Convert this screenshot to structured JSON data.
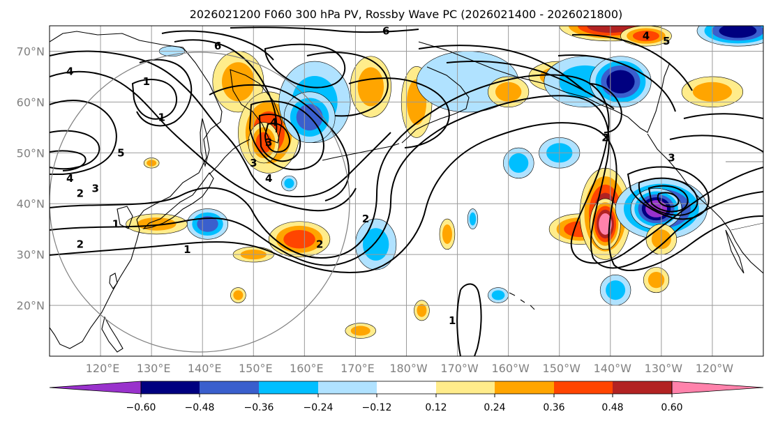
{
  "chart_data": {
    "type": "contour_map",
    "title": "2026021200 F060 300 hPa PV, Rossby Wave PC (2026021400 - 2026021800)",
    "lat_range": [
      10,
      75
    ],
    "lon_range": [
      110,
      250
    ],
    "lat_ticks": [
      {
        "value": 20,
        "label": "20°N"
      },
      {
        "value": 30,
        "label": "30°N"
      },
      {
        "value": 40,
        "label": "40°N"
      },
      {
        "value": 50,
        "label": "50°N"
      },
      {
        "value": 60,
        "label": "60°N"
      },
      {
        "value": 70,
        "label": "70°N"
      }
    ],
    "lon_ticks": [
      {
        "value": 120,
        "label": "120°E"
      },
      {
        "value": 130,
        "label": "130°E"
      },
      {
        "value": 140,
        "label": "140°E"
      },
      {
        "value": 150,
        "label": "150°E"
      },
      {
        "value": 160,
        "label": "160°E"
      },
      {
        "value": 170,
        "label": "170°E"
      },
      {
        "value": 180,
        "label": "180°W"
      },
      {
        "value": 190,
        "label": "170°W"
      },
      {
        "value": 200,
        "label": "160°W"
      },
      {
        "value": 210,
        "label": "150°W"
      },
      {
        "value": 220,
        "label": "140°W"
      },
      {
        "value": 230,
        "label": "130°W"
      },
      {
        "value": 240,
        "label": "120°W"
      }
    ],
    "colorbar": {
      "colors": [
        "#9932CC",
        "#000080",
        "#3A5FCD",
        "#00BFFF",
        "#B0E2FF",
        "#FFFFFF",
        "#FFEC8B",
        "#FFA500",
        "#FF4500",
        "#B22222",
        "#FF82AB"
      ],
      "tick_labels": [
        "−0.60",
        "−0.48",
        "−0.36",
        "−0.24",
        "−0.12",
        "0.12",
        "0.24",
        "0.36",
        "0.48",
        "0.60"
      ],
      "extend": "both"
    },
    "pv_contour_labels": [
      {
        "text": "6",
        "lon": 176,
        "lat": 74
      },
      {
        "text": "6",
        "lon": 143,
        "lat": 71
      },
      {
        "text": "4",
        "lon": 114,
        "lat": 66
      },
      {
        "text": "1",
        "lon": 129,
        "lat": 64
      },
      {
        "text": "1",
        "lon": 132,
        "lat": 57
      },
      {
        "text": "4",
        "lon": 154,
        "lat": 56
      },
      {
        "text": "3",
        "lon": 153,
        "lat": 52
      },
      {
        "text": "5",
        "lon": 124,
        "lat": 50
      },
      {
        "text": "4",
        "lon": 114,
        "lat": 45
      },
      {
        "text": "2",
        "lon": 116,
        "lat": 42
      },
      {
        "text": "3",
        "lon": 119,
        "lat": 43
      },
      {
        "text": "1",
        "lon": 123,
        "lat": 36
      },
      {
        "text": "2",
        "lon": 116,
        "lat": 32
      },
      {
        "text": "1",
        "lon": 137,
        "lat": 31
      },
      {
        "text": "3",
        "lon": 150,
        "lat": 48
      },
      {
        "text": "4",
        "lon": 153,
        "lat": 45
      },
      {
        "text": "2",
        "lon": 172,
        "lat": 37
      },
      {
        "text": "2",
        "lon": 163,
        "lat": 32
      },
      {
        "text": "1",
        "lon": 189,
        "lat": 17
      },
      {
        "text": "2",
        "lon": 219,
        "lat": 53
      },
      {
        "text": "3",
        "lon": 232,
        "lat": 49
      },
      {
        "text": "4",
        "lon": 227,
        "lat": 73
      },
      {
        "text": "5",
        "lon": 231,
        "lat": 72
      }
    ],
    "pc_anomalies": [
      {
        "lon": 134,
        "lat": 70,
        "rx": 2.5,
        "ry": 1,
        "value": -0.2
      },
      {
        "lon": 147,
        "lat": 64,
        "rx": 5,
        "ry": 6,
        "value": 0.3
      },
      {
        "lon": 153,
        "lat": 54,
        "rx": 6,
        "ry": 8,
        "value": 0.4
      },
      {
        "lon": 152,
        "lat": 52,
        "rx": 3,
        "ry": 4,
        "value": 0.45
      },
      {
        "lon": 162,
        "lat": 60,
        "rx": 7,
        "ry": 8,
        "value": -0.3
      },
      {
        "lon": 161,
        "lat": 57,
        "rx": 5,
        "ry": 5,
        "value": -0.4
      },
      {
        "lon": 173,
        "lat": 63,
        "rx": 4,
        "ry": 6,
        "value": 0.3
      },
      {
        "lon": 182,
        "lat": 60,
        "rx": 3,
        "ry": 7,
        "value": 0.3
      },
      {
        "lon": 192,
        "lat": 64,
        "rx": 10,
        "ry": 6,
        "value": -0.2
      },
      {
        "lon": 200,
        "lat": 62,
        "rx": 4,
        "ry": 3,
        "value": 0.3
      },
      {
        "lon": 210,
        "lat": 65,
        "rx": 6,
        "ry": 3,
        "value": 0.25
      },
      {
        "lon": 215,
        "lat": 64,
        "rx": 8,
        "ry": 5,
        "value": -0.25
      },
      {
        "lon": 222,
        "lat": 64,
        "rx": 6,
        "ry": 5,
        "value": -0.55
      },
      {
        "lon": 220,
        "lat": 75,
        "rx": 10,
        "ry": 3,
        "value": 0.5
      },
      {
        "lon": 227,
        "lat": 73,
        "rx": 5,
        "ry": 2,
        "value": 0.4
      },
      {
        "lon": 245,
        "lat": 74,
        "rx": 8,
        "ry": 3,
        "value": -0.5
      },
      {
        "lon": 240,
        "lat": 62,
        "rx": 6,
        "ry": 3,
        "value": 0.35
      },
      {
        "lon": 210,
        "lat": 50,
        "rx": 4,
        "ry": 3,
        "value": -0.3
      },
      {
        "lon": 214,
        "lat": 35,
        "rx": 6,
        "ry": 3,
        "value": 0.4
      },
      {
        "lon": 219,
        "lat": 38,
        "rx": 5,
        "ry": 9,
        "value": 0.55
      },
      {
        "lon": 219,
        "lat": 36,
        "rx": 3,
        "ry": 5,
        "value": 0.7
      },
      {
        "lon": 230,
        "lat": 39,
        "rx": 9,
        "ry": 6,
        "value": -0.5
      },
      {
        "lon": 229,
        "lat": 39,
        "rx": 5,
        "ry": 4,
        "value": -0.65
      },
      {
        "lon": 230,
        "lat": 33,
        "rx": 3,
        "ry": 3,
        "value": 0.35
      },
      {
        "lon": 221,
        "lat": 23,
        "rx": 3,
        "ry": 3,
        "value": -0.3
      },
      {
        "lon": 229,
        "lat": 25,
        "rx": 2.5,
        "ry": 2.5,
        "value": 0.35
      },
      {
        "lon": 131,
        "lat": 36,
        "rx": 6,
        "ry": 2,
        "value": 0.35
      },
      {
        "lon": 141,
        "lat": 36,
        "rx": 4,
        "ry": 3,
        "value": -0.4
      },
      {
        "lon": 159,
        "lat": 33,
        "rx": 6,
        "ry": 3.5,
        "value": 0.45
      },
      {
        "lon": 174,
        "lat": 32,
        "rx": 4,
        "ry": 5,
        "value": -0.3
      },
      {
        "lon": 150,
        "lat": 30,
        "rx": 4,
        "ry": 1.5,
        "value": 0.25
      },
      {
        "lon": 147,
        "lat": 22,
        "rx": 1.5,
        "ry": 1.5,
        "value": 0.3
      },
      {
        "lon": 188,
        "lat": 34,
        "rx": 1.5,
        "ry": 3,
        "value": 0.25
      },
      {
        "lon": 183,
        "lat": 19,
        "rx": 1.5,
        "ry": 2,
        "value": 0.25
      },
      {
        "lon": 171,
        "lat": 15,
        "rx": 3,
        "ry": 1.5,
        "value": 0.3
      },
      {
        "lon": 202,
        "lat": 48,
        "rx": 3,
        "ry": 3,
        "value": -0.25
      },
      {
        "lon": 193,
        "lat": 37,
        "rx": 1,
        "ry": 2,
        "value": -0.3
      },
      {
        "lon": 130,
        "lat": 48,
        "rx": 1.5,
        "ry": 1,
        "value": 0.3
      },
      {
        "lon": 157,
        "lat": 44,
        "rx": 1.5,
        "ry": 1.5,
        "value": -0.3
      },
      {
        "lon": 198,
        "lat": 22,
        "rx": 2,
        "ry": 1.5,
        "value": -0.3
      }
    ]
  }
}
